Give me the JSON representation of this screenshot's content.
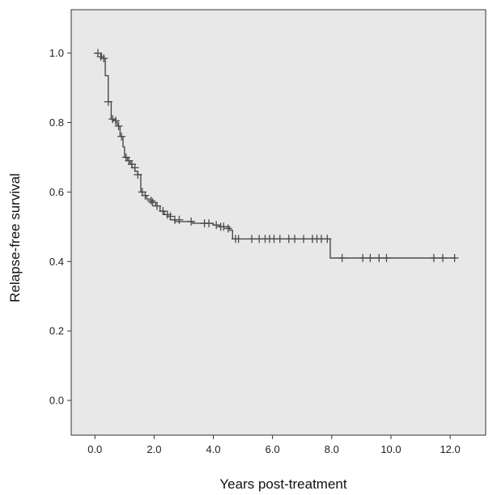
{
  "chart_data": {
    "type": "line",
    "subtype": "kaplan-meier",
    "title": "",
    "xlabel": "Years post-treatment",
    "ylabel": "Relapse-free survival",
    "xlim": [
      -0.8,
      13.2
    ],
    "ylim": [
      -0.1,
      1.125
    ],
    "xticks": [
      0,
      2,
      4,
      6,
      8,
      10,
      12
    ],
    "xtick_labels": [
      "0.0",
      "2.0",
      "4.0",
      "6.0",
      "8.0",
      "10.0",
      "12.0"
    ],
    "yticks": [
      0,
      0.2,
      0.4,
      0.6,
      0.8,
      1.0
    ],
    "ytick_labels": [
      "0.0",
      "0.2",
      "0.4",
      "0.6",
      "0.8",
      "1.0"
    ],
    "grid": false,
    "legend": "none",
    "colors": {
      "plot_background": "#e8e8e8",
      "line": "#4a4a4a",
      "frame": "#333333"
    },
    "series": [
      {
        "steps": [
          [
            0.0,
            1.0
          ],
          [
            0.22,
            0.985
          ],
          [
            0.35,
            0.935
          ],
          [
            0.45,
            0.86
          ],
          [
            0.55,
            0.81
          ],
          [
            0.65,
            0.805
          ],
          [
            0.75,
            0.79
          ],
          [
            0.85,
            0.76
          ],
          [
            0.95,
            0.73
          ],
          [
            1.0,
            0.7
          ],
          [
            1.1,
            0.69
          ],
          [
            1.2,
            0.68
          ],
          [
            1.25,
            0.67
          ],
          [
            1.35,
            0.66
          ],
          [
            1.45,
            0.65
          ],
          [
            1.55,
            0.6
          ],
          [
            1.6,
            0.59
          ],
          [
            1.75,
            0.58
          ],
          [
            1.9,
            0.57
          ],
          [
            2.05,
            0.56
          ],
          [
            2.2,
            0.545
          ],
          [
            2.35,
            0.535
          ],
          [
            2.45,
            0.53
          ],
          [
            2.55,
            0.52
          ],
          [
            2.7,
            0.515
          ],
          [
            3.3,
            0.51
          ],
          [
            4.0,
            0.505
          ],
          [
            4.2,
            0.5
          ],
          [
            4.55,
            0.49
          ],
          [
            4.65,
            0.465
          ],
          [
            7.95,
            0.41
          ],
          [
            12.2,
            0.41
          ]
        ],
        "censored": [
          [
            0.1,
            1.0
          ],
          [
            0.2,
            0.99
          ],
          [
            0.3,
            0.985
          ],
          [
            0.45,
            0.86
          ],
          [
            0.6,
            0.81
          ],
          [
            0.7,
            0.805
          ],
          [
            0.8,
            0.79
          ],
          [
            0.9,
            0.76
          ],
          [
            1.05,
            0.7
          ],
          [
            1.15,
            0.69
          ],
          [
            1.25,
            0.68
          ],
          [
            1.35,
            0.67
          ],
          [
            1.45,
            0.65
          ],
          [
            1.6,
            0.6
          ],
          [
            1.7,
            0.59
          ],
          [
            1.9,
            0.575
          ],
          [
            1.95,
            0.57
          ],
          [
            2.1,
            0.56
          ],
          [
            2.3,
            0.545
          ],
          [
            2.45,
            0.535
          ],
          [
            2.55,
            0.53
          ],
          [
            2.7,
            0.52
          ],
          [
            2.85,
            0.52
          ],
          [
            3.25,
            0.515
          ],
          [
            3.7,
            0.51
          ],
          [
            3.85,
            0.51
          ],
          [
            4.1,
            0.505
          ],
          [
            4.25,
            0.5
          ],
          [
            4.35,
            0.5
          ],
          [
            4.5,
            0.495
          ],
          [
            4.75,
            0.465
          ],
          [
            4.85,
            0.465
          ],
          [
            5.3,
            0.465
          ],
          [
            5.55,
            0.465
          ],
          [
            5.75,
            0.465
          ],
          [
            5.9,
            0.465
          ],
          [
            6.05,
            0.465
          ],
          [
            6.25,
            0.465
          ],
          [
            6.55,
            0.465
          ],
          [
            6.75,
            0.465
          ],
          [
            7.05,
            0.465
          ],
          [
            7.35,
            0.465
          ],
          [
            7.5,
            0.465
          ],
          [
            7.65,
            0.465
          ],
          [
            7.85,
            0.465
          ],
          [
            8.35,
            0.41
          ],
          [
            9.05,
            0.41
          ],
          [
            9.3,
            0.41
          ],
          [
            9.6,
            0.41
          ],
          [
            9.85,
            0.41
          ],
          [
            11.45,
            0.41
          ],
          [
            11.75,
            0.41
          ],
          [
            12.15,
            0.41
          ]
        ]
      }
    ]
  }
}
